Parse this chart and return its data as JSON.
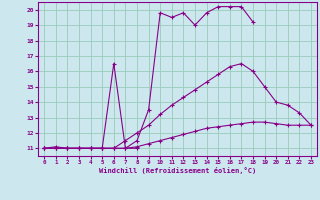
{
  "xlabel": "Windchill (Refroidissement éolien,°C)",
  "background_color": "#cce8ee",
  "line_color": "#880088",
  "grid_color": "#99ccbb",
  "xlim": [
    -0.5,
    23.5
  ],
  "ylim": [
    10.5,
    20.5
  ],
  "yticks": [
    11,
    12,
    13,
    14,
    15,
    16,
    17,
    18,
    19,
    20
  ],
  "xticks": [
    0,
    1,
    2,
    3,
    4,
    5,
    6,
    7,
    8,
    9,
    10,
    11,
    12,
    13,
    14,
    15,
    16,
    17,
    18,
    19,
    20,
    21,
    22,
    23
  ],
  "series": [
    {
      "x": [
        0,
        1,
        2,
        3,
        4,
        5,
        6,
        7,
        8,
        9,
        10,
        11,
        12,
        13,
        14,
        15,
        16,
        17,
        18,
        19,
        20,
        21,
        22,
        23
      ],
      "y": [
        11.0,
        11.1,
        11.0,
        11.0,
        11.0,
        11.0,
        11.0,
        11.0,
        11.1,
        11.3,
        11.5,
        11.7,
        11.9,
        12.1,
        12.3,
        12.4,
        12.5,
        12.6,
        12.7,
        12.7,
        12.6,
        12.5,
        12.5,
        12.5
      ]
    },
    {
      "x": [
        0,
        1,
        2,
        3,
        4,
        5,
        6,
        7,
        8,
        9,
        10,
        11,
        12,
        13,
        14,
        15,
        16,
        17,
        18,
        19,
        20,
        21,
        22,
        23
      ],
      "y": [
        11.0,
        11.0,
        11.0,
        11.0,
        11.0,
        11.0,
        11.0,
        11.5,
        12.0,
        12.5,
        13.2,
        13.8,
        14.3,
        14.8,
        15.3,
        15.8,
        16.3,
        16.5,
        16.0,
        15.0,
        14.0,
        13.8,
        13.3,
        12.5
      ]
    },
    {
      "x": [
        0,
        1,
        2,
        3,
        4,
        5,
        6,
        7,
        8
      ],
      "y": [
        11.0,
        11.0,
        11.0,
        11.0,
        11.0,
        11.0,
        16.5,
        11.0,
        11.0
      ]
    },
    {
      "x": [
        0,
        1,
        2,
        3,
        4,
        5,
        6,
        7,
        8,
        9,
        10,
        11,
        12,
        13,
        14,
        15,
        16,
        17,
        18
      ],
      "y": [
        11.0,
        11.0,
        11.0,
        11.0,
        11.0,
        11.0,
        11.0,
        11.0,
        11.5,
        13.5,
        19.8,
        19.5,
        19.8,
        19.0,
        19.8,
        20.2,
        20.2,
        20.2,
        19.2
      ]
    }
  ]
}
